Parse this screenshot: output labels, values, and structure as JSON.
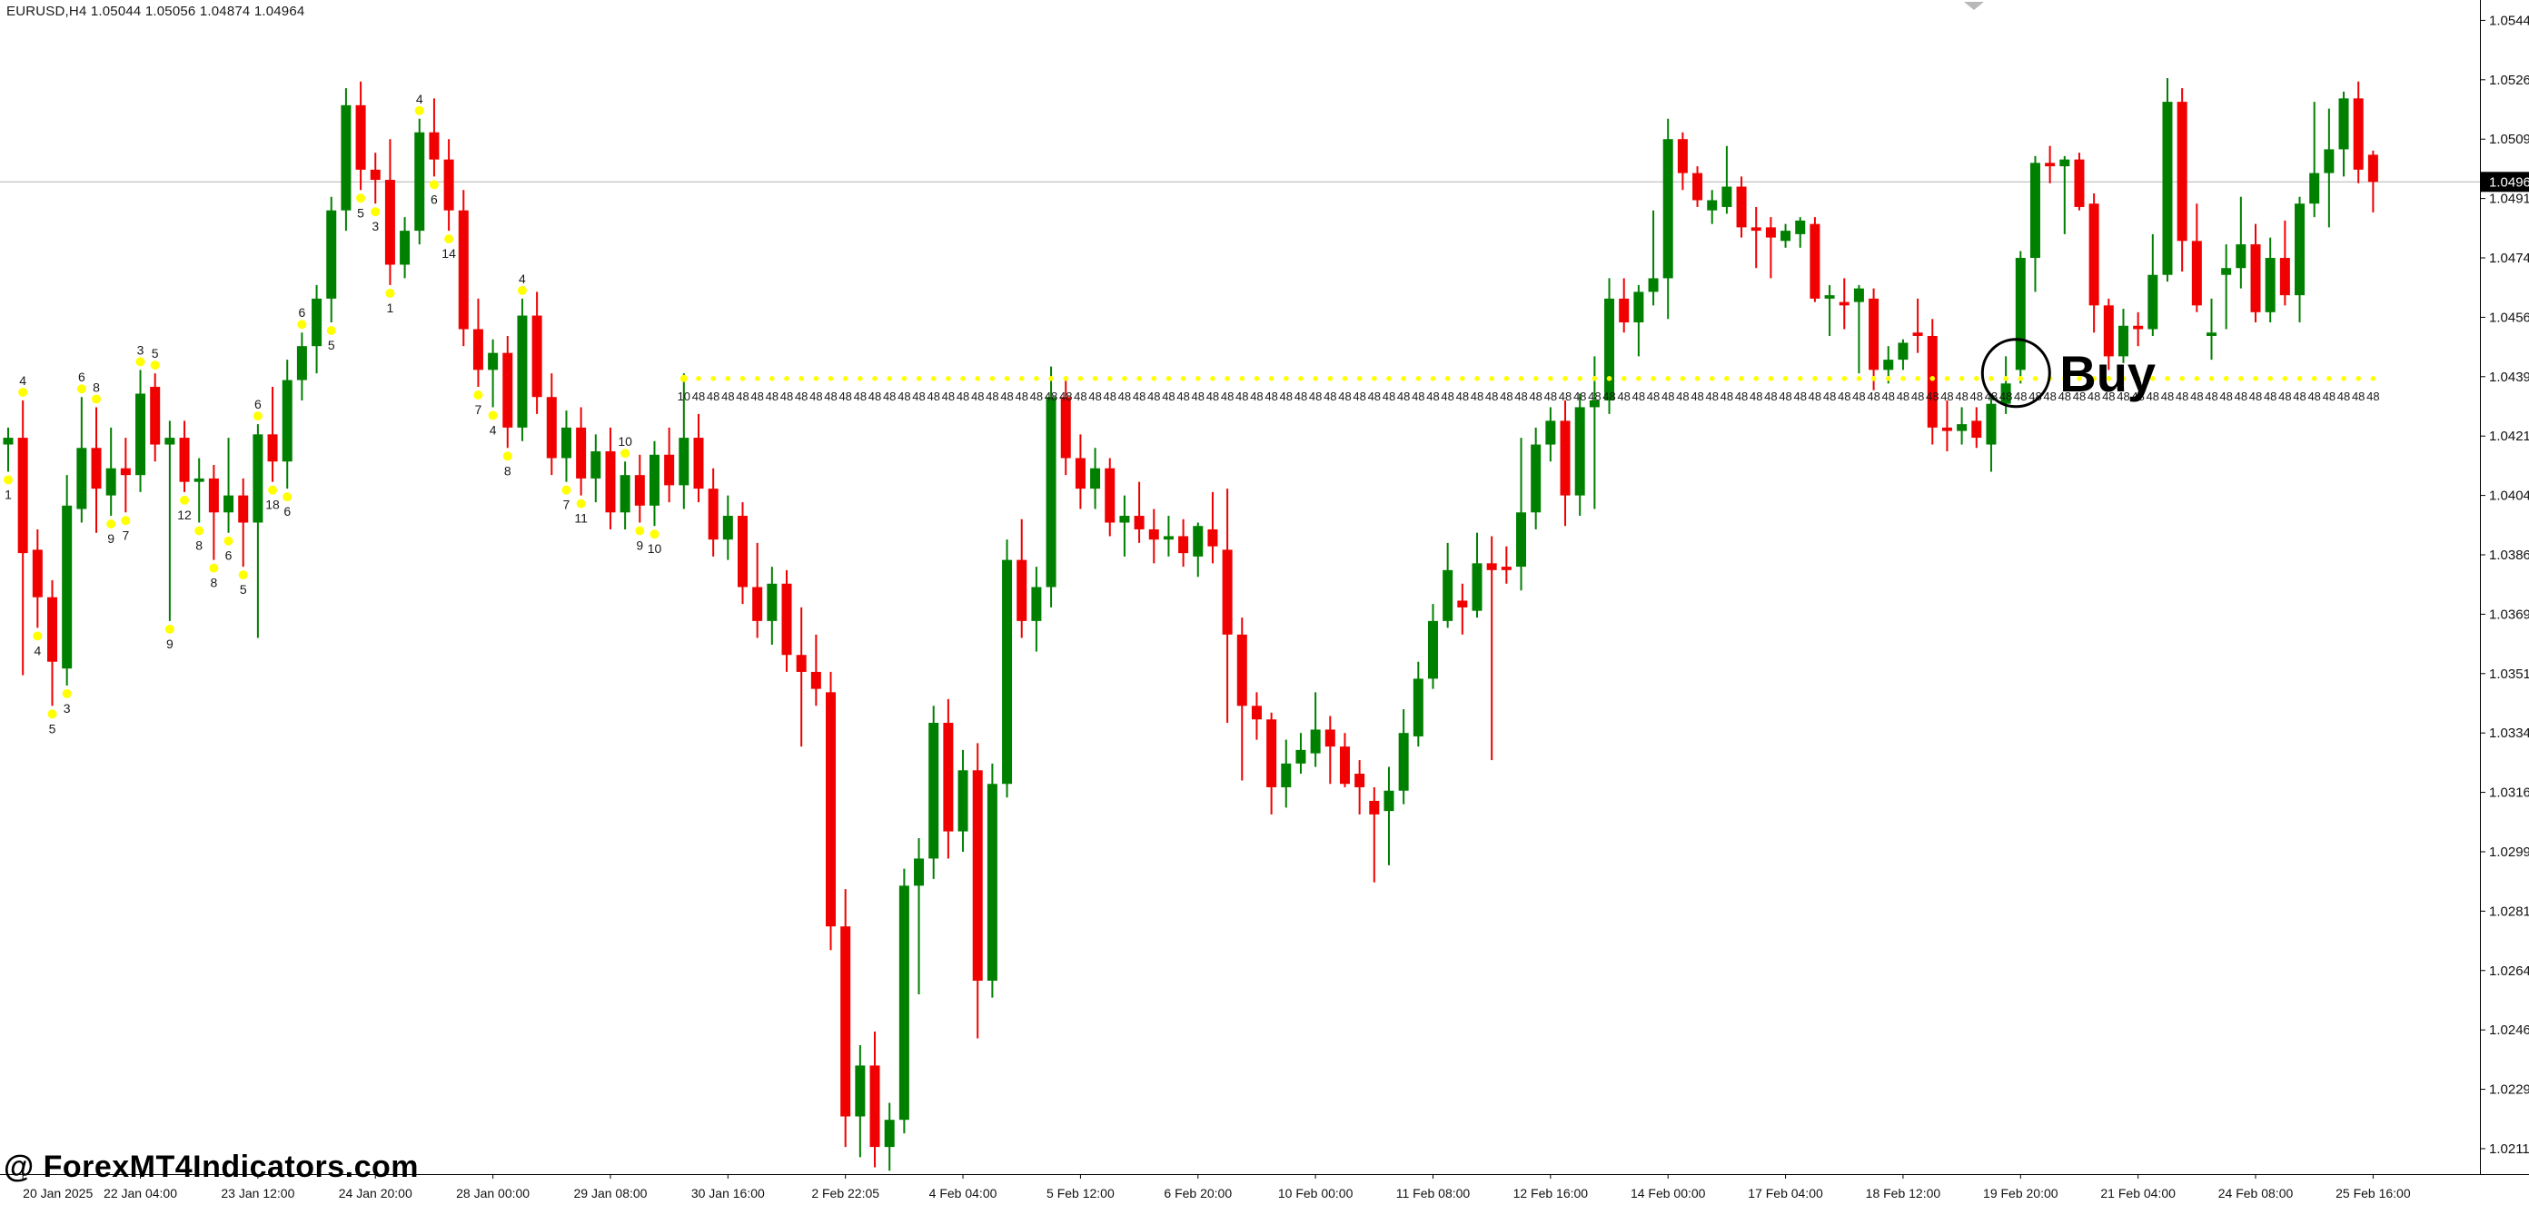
{
  "window": {
    "title": "EURUSD,H4  1.05044 1.05056 1.04874 1.04964",
    "watermark": "@ ForexMT4Indicators.com"
  },
  "colors": {
    "bull": "#008000",
    "bear": "#f00000",
    "background": "#ffffff",
    "axis_text": "#111111",
    "axis_line": "#000000",
    "current_price_line": "#b3b3b3",
    "current_price_box_bg": "#000000",
    "current_price_box_text": "#ffffff",
    "signal_dot": "#ffff00",
    "signal_text": "#1a1a1a",
    "marker_text": "#1a1a1a",
    "annotation": "#000000",
    "shift_icon": "#b8b8b8"
  },
  "price_axis": {
    "labels": [
      "1.05440",
      "1.05265",
      "1.05090",
      "1.04915",
      "1.04740",
      "1.04565",
      "1.04390",
      "1.04215",
      "1.04040",
      "1.03865",
      "1.03690",
      "1.03515",
      "1.03340",
      "1.03165",
      "1.02990",
      "1.02815",
      "1.02640",
      "1.02465",
      "1.02290",
      "1.02115"
    ],
    "current_price": "1.04964"
  },
  "time_axis": {
    "labels": [
      {
        "label": "20 Jan 2025",
        "bar": 1
      },
      {
        "label": "22 Jan 04:00",
        "bar": 9
      },
      {
        "label": "23 Jan 12:00",
        "bar": 17
      },
      {
        "label": "24 Jan 20:00",
        "bar": 25
      },
      {
        "label": "28 Jan 00:00",
        "bar": 33
      },
      {
        "label": "29 Jan 08:00",
        "bar": 41
      },
      {
        "label": "30 Jan 16:00",
        "bar": 49
      },
      {
        "label": "2 Feb 22:05",
        "bar": 57
      },
      {
        "label": "4 Feb 04:00",
        "bar": 65
      },
      {
        "label": "5 Feb 12:00",
        "bar": 73
      },
      {
        "label": "6 Feb 20:00",
        "bar": 81
      },
      {
        "label": "10 Feb 00:00",
        "bar": 89
      },
      {
        "label": "11 Feb 08:00",
        "bar": 97
      },
      {
        "label": "12 Feb 16:00",
        "bar": 105
      },
      {
        "label": "14 Feb 00:00",
        "bar": 113
      },
      {
        "label": "17 Feb 04:00",
        "bar": 121
      },
      {
        "label": "18 Feb 12:00",
        "bar": 129
      },
      {
        "label": "19 Feb 20:00",
        "bar": 137
      },
      {
        "label": "21 Feb 04:00",
        "bar": 145
      },
      {
        "label": "24 Feb 08:00",
        "bar": 153
      },
      {
        "label": "25 Feb 16:00",
        "bar": 161
      }
    ]
  },
  "chart_data": {
    "type": "candlestick",
    "symbol": "EURUSD",
    "timeframe": "H4",
    "title": "EURUSD,H4  1.05044 1.05056 1.04874 1.04964",
    "last_bar_ohlc": {
      "open": 1.05044,
      "high": 1.05056,
      "low": 1.04874,
      "close": 1.04964
    },
    "ylim": [
      1.0204,
      1.055
    ],
    "grid": false,
    "current_price": 1.04964,
    "signal_line": {
      "price": 1.0439,
      "start_bar": 46,
      "end_bar": 161,
      "first_label": "10",
      "repeat_label": "48"
    },
    "buy_annotation": {
      "text": "Buy",
      "bar": 137,
      "price": 1.0439
    },
    "candles": [
      [
        1.0419,
        1.0424,
        1.0411,
        1.0421
      ],
      [
        1.0421,
        1.0432,
        1.0351,
        1.0387
      ],
      [
        1.0388,
        1.0394,
        1.0365,
        1.0374
      ],
      [
        1.0374,
        1.0379,
        1.0342,
        1.0355
      ],
      [
        1.0353,
        1.041,
        1.0348,
        1.0401
      ],
      [
        1.04,
        1.0433,
        1.0396,
        1.0418
      ],
      [
        1.0418,
        1.043,
        1.0393,
        1.0406
      ],
      [
        1.0404,
        1.0424,
        1.0398,
        1.0412
      ],
      [
        1.0412,
        1.0421,
        1.0399,
        1.041
      ],
      [
        1.041,
        1.0441,
        1.0405,
        1.0434
      ],
      [
        1.0436,
        1.044,
        1.0414,
        1.0419
      ],
      [
        1.0419,
        1.0426,
        1.0367,
        1.0421
      ],
      [
        1.0421,
        1.0426,
        1.0405,
        1.0408
      ],
      [
        1.0408,
        1.0415,
        1.0396,
        1.0409
      ],
      [
        1.0409,
        1.0413,
        1.0385,
        1.0399
      ],
      [
        1.0399,
        1.0421,
        1.0393,
        1.0404
      ],
      [
        1.0404,
        1.0409,
        1.0383,
        1.0396
      ],
      [
        1.0396,
        1.0425,
        1.0362,
        1.0422
      ],
      [
        1.0422,
        1.0436,
        1.0408,
        1.0414
      ],
      [
        1.0414,
        1.0444,
        1.0406,
        1.0438
      ],
      [
        1.0438,
        1.0452,
        1.0432,
        1.0448
      ],
      [
        1.0448,
        1.0466,
        1.044,
        1.0462
      ],
      [
        1.0462,
        1.0492,
        1.0455,
        1.0488
      ],
      [
        1.0488,
        1.0524,
        1.0482,
        1.0519
      ],
      [
        1.0519,
        1.0526,
        1.0494,
        1.05
      ],
      [
        1.05,
        1.0505,
        1.049,
        1.0497
      ],
      [
        1.0497,
        1.0509,
        1.0466,
        1.0472
      ],
      [
        1.0472,
        1.0486,
        1.0468,
        1.0482
      ],
      [
        1.0482,
        1.0515,
        1.0478,
        1.0511
      ],
      [
        1.0511,
        1.0521,
        1.0498,
        1.0503
      ],
      [
        1.0503,
        1.0509,
        1.0482,
        1.0488
      ],
      [
        1.0488,
        1.0494,
        1.0448,
        1.0453
      ],
      [
        1.0453,
        1.0462,
        1.0436,
        1.0441
      ],
      [
        1.0441,
        1.045,
        1.043,
        1.0446
      ],
      [
        1.0446,
        1.0451,
        1.0418,
        1.0424
      ],
      [
        1.0424,
        1.0462,
        1.042,
        1.0457
      ],
      [
        1.0457,
        1.0464,
        1.0428,
        1.0433
      ],
      [
        1.0433,
        1.044,
        1.041,
        1.0415
      ],
      [
        1.0415,
        1.0429,
        1.0408,
        1.0424
      ],
      [
        1.0424,
        1.043,
        1.0404,
        1.0409
      ],
      [
        1.0409,
        1.0422,
        1.0402,
        1.0417
      ],
      [
        1.0417,
        1.0424,
        1.0394,
        1.0399
      ],
      [
        1.0399,
        1.0414,
        1.0394,
        1.041
      ],
      [
        1.041,
        1.0416,
        1.0396,
        1.0401
      ],
      [
        1.0401,
        1.042,
        1.0395,
        1.0416
      ],
      [
        1.0416,
        1.0424,
        1.0402,
        1.0407
      ],
      [
        1.0407,
        1.044,
        1.04,
        1.0421
      ],
      [
        1.0421,
        1.0428,
        1.0402,
        1.0406
      ],
      [
        1.0406,
        1.0412,
        1.0386,
        1.0391
      ],
      [
        1.0391,
        1.0404,
        1.0385,
        1.0398
      ],
      [
        1.0398,
        1.0402,
        1.0372,
        1.0377
      ],
      [
        1.0377,
        1.039,
        1.0362,
        1.0367
      ],
      [
        1.0367,
        1.0383,
        1.036,
        1.0378
      ],
      [
        1.0378,
        1.0382,
        1.0352,
        1.0357
      ],
      [
        1.0357,
        1.0371,
        1.033,
        1.0352
      ],
      [
        1.0352,
        1.0363,
        1.0342,
        1.0347
      ],
      [
        1.0346,
        1.0352,
        1.027,
        1.0277
      ],
      [
        1.0277,
        1.0288,
        1.0212,
        1.0221
      ],
      [
        1.0221,
        1.0242,
        1.0209,
        1.0236
      ],
      [
        1.0236,
        1.0246,
        1.0206,
        1.0212
      ],
      [
        1.0212,
        1.0225,
        1.0205,
        1.022
      ],
      [
        1.022,
        1.0294,
        1.0216,
        1.0289
      ],
      [
        1.0289,
        1.0303,
        1.0257,
        1.0297
      ],
      [
        1.0297,
        1.0342,
        1.0291,
        1.0337
      ],
      [
        1.0337,
        1.0344,
        1.0297,
        1.0305
      ],
      [
        1.0305,
        1.0329,
        1.0299,
        1.0323
      ],
      [
        1.0323,
        1.0331,
        1.0244,
        1.0261
      ],
      [
        1.0261,
        1.0325,
        1.0256,
        1.0319
      ],
      [
        1.0319,
        1.0391,
        1.0315,
        1.0385
      ],
      [
        1.0385,
        1.0397,
        1.0362,
        1.0367
      ],
      [
        1.0367,
        1.0383,
        1.0358,
        1.0377
      ],
      [
        1.0377,
        1.0442,
        1.0371,
        1.0433
      ],
      [
        1.0433,
        1.0438,
        1.041,
        1.0415
      ],
      [
        1.0415,
        1.0422,
        1.04,
        1.0406
      ],
      [
        1.0406,
        1.0418,
        1.04,
        1.0412
      ],
      [
        1.0412,
        1.0415,
        1.0392,
        1.0396
      ],
      [
        1.0396,
        1.0404,
        1.0386,
        1.0398
      ],
      [
        1.0398,
        1.0408,
        1.039,
        1.0394
      ],
      [
        1.0394,
        1.04,
        1.0384,
        1.0391
      ],
      [
        1.0391,
        1.0398,
        1.0386,
        1.0392
      ],
      [
        1.0392,
        1.0397,
        1.0383,
        1.0387
      ],
      [
        1.0386,
        1.0396,
        1.038,
        1.0395
      ],
      [
        1.0394,
        1.0405,
        1.0384,
        1.0389
      ],
      [
        1.0388,
        1.0406,
        1.0337,
        1.0363
      ],
      [
        1.0363,
        1.0368,
        1.032,
        1.0342
      ],
      [
        1.0342,
        1.0346,
        1.0332,
        1.0338
      ],
      [
        1.0338,
        1.034,
        1.031,
        1.0318
      ],
      [
        1.0318,
        1.0332,
        1.0312,
        1.0325
      ],
      [
        1.0325,
        1.0334,
        1.0322,
        1.0329
      ],
      [
        1.0328,
        1.0346,
        1.0324,
        1.0335
      ],
      [
        1.0335,
        1.0339,
        1.0319,
        1.033
      ],
      [
        1.033,
        1.0334,
        1.0318,
        1.0319
      ],
      [
        1.0322,
        1.0326,
        1.031,
        1.0318
      ],
      [
        1.0314,
        1.0318,
        1.029,
        1.031
      ],
      [
        1.0311,
        1.0324,
        1.0295,
        1.0317
      ],
      [
        1.0317,
        1.0341,
        1.0313,
        1.0334
      ],
      [
        1.0333,
        1.0355,
        1.033,
        1.035
      ],
      [
        1.035,
        1.0372,
        1.0347,
        1.0367
      ],
      [
        1.0367,
        1.039,
        1.0365,
        1.0382
      ],
      [
        1.0373,
        1.0378,
        1.0363,
        1.0371
      ],
      [
        1.037,
        1.0393,
        1.0368,
        1.0384
      ],
      [
        1.0384,
        1.0392,
        1.0326,
        1.0382
      ],
      [
        1.0383,
        1.0389,
        1.0378,
        1.0382
      ],
      [
        1.0383,
        1.0421,
        1.0376,
        1.0399
      ],
      [
        1.0399,
        1.0424,
        1.0394,
        1.0419
      ],
      [
        1.0419,
        1.043,
        1.0414,
        1.0426
      ],
      [
        1.0426,
        1.0432,
        1.0395,
        1.0404
      ],
      [
        1.0404,
        1.0434,
        1.0398,
        1.043
      ],
      [
        1.043,
        1.0445,
        1.04,
        1.0432
      ],
      [
        1.0432,
        1.0468,
        1.0428,
        1.0462
      ],
      [
        1.0462,
        1.0468,
        1.0452,
        1.0455
      ],
      [
        1.0455,
        1.0466,
        1.0445,
        1.0464
      ],
      [
        1.0464,
        1.0488,
        1.046,
        1.0468
      ],
      [
        1.0468,
        1.0515,
        1.0456,
        1.0509
      ],
      [
        1.0509,
        1.0511,
        1.0494,
        1.0499
      ],
      [
        1.0499,
        1.0501,
        1.0489,
        1.0491
      ],
      [
        1.0488,
        1.0494,
        1.0484,
        1.0491
      ],
      [
        1.0489,
        1.0507,
        1.0487,
        1.0495
      ],
      [
        1.0495,
        1.0498,
        1.048,
        1.0483
      ],
      [
        1.0483,
        1.0489,
        1.0471,
        1.0482
      ],
      [
        1.0483,
        1.0486,
        1.0468,
        1.048
      ],
      [
        1.0479,
        1.0484,
        1.0477,
        1.0482
      ],
      [
        1.0481,
        1.0486,
        1.0477,
        1.0485
      ],
      [
        1.0484,
        1.0486,
        1.0461,
        1.0462
      ],
      [
        1.0462,
        1.0466,
        1.0451,
        1.0463
      ],
      [
        1.0461,
        1.0468,
        1.0453,
        1.046
      ],
      [
        1.0461,
        1.0466,
        1.044,
        1.0465
      ],
      [
        1.0462,
        1.0465,
        1.0435,
        1.0441
      ],
      [
        1.0441,
        1.0448,
        1.0437,
        1.0444
      ],
      [
        1.0444,
        1.045,
        1.0441,
        1.0449
      ],
      [
        1.0452,
        1.0462,
        1.0446,
        1.0451
      ],
      [
        1.0451,
        1.0456,
        1.0419,
        1.0424
      ],
      [
        1.0424,
        1.0432,
        1.0417,
        1.0423
      ],
      [
        1.0423,
        1.043,
        1.0419,
        1.0425
      ],
      [
        1.0426,
        1.043,
        1.0418,
        1.0421
      ],
      [
        1.0419,
        1.0434,
        1.0411,
        1.0431
      ],
      [
        1.0431,
        1.0445,
        1.0428,
        1.0437
      ],
      [
        1.0441,
        1.0476,
        1.0437,
        1.0474
      ],
      [
        1.0474,
        1.0504,
        1.0464,
        1.0502
      ],
      [
        1.0502,
        1.0507,
        1.0496,
        1.0501
      ],
      [
        1.0501,
        1.0504,
        1.0481,
        1.0503
      ],
      [
        1.0503,
        1.0505,
        1.0488,
        1.0489
      ],
      [
        1.049,
        1.0493,
        1.0452,
        1.046
      ],
      [
        1.046,
        1.0462,
        1.0441,
        1.0445
      ],
      [
        1.0445,
        1.0459,
        1.0443,
        1.0454
      ],
      [
        1.0454,
        1.0458,
        1.0448,
        1.0453
      ],
      [
        1.0453,
        1.0481,
        1.0451,
        1.0469
      ],
      [
        1.0469,
        1.0527,
        1.0467,
        1.052
      ],
      [
        1.052,
        1.0524,
        1.047,
        1.0479
      ],
      [
        1.0479,
        1.049,
        1.0458,
        1.046
      ],
      [
        1.0451,
        1.0462,
        1.0444,
        1.0452
      ],
      [
        1.0469,
        1.0478,
        1.0453,
        1.0471
      ],
      [
        1.0471,
        1.0492,
        1.0465,
        1.0478
      ],
      [
        1.0478,
        1.0484,
        1.0455,
        1.0458
      ],
      [
        1.0458,
        1.048,
        1.0455,
        1.0474
      ],
      [
        1.0474,
        1.0485,
        1.046,
        1.0463
      ],
      [
        1.0463,
        1.0492,
        1.0455,
        1.049
      ],
      [
        1.049,
        1.052,
        1.0486,
        1.0499
      ],
      [
        1.0499,
        1.0518,
        1.0483,
        1.0506
      ],
      [
        1.0506,
        1.0523,
        1.0498,
        1.0521
      ],
      [
        1.0521,
        1.0526,
        1.0496,
        1.05
      ],
      [
        1.05044,
        1.05056,
        1.04874,
        1.04964
      ]
    ],
    "markers": [
      {
        "bar": 0,
        "label": "1",
        "side": "below"
      },
      {
        "bar": 1,
        "label": "4",
        "side": "above"
      },
      {
        "bar": 2,
        "label": "4",
        "side": "below"
      },
      {
        "bar": 3,
        "label": "5",
        "side": "below"
      },
      {
        "bar": 4,
        "label": "3",
        "side": "below"
      },
      {
        "bar": 5,
        "label": "6",
        "side": "above"
      },
      {
        "bar": 6,
        "label": "8",
        "side": "above"
      },
      {
        "bar": 7,
        "label": "9",
        "side": "below"
      },
      {
        "bar": 8,
        "label": "7",
        "side": "below"
      },
      {
        "bar": 9,
        "label": "3",
        "side": "above"
      },
      {
        "bar": 10,
        "label": "5",
        "side": "above"
      },
      {
        "bar": 11,
        "label": "9",
        "side": "below"
      },
      {
        "bar": 12,
        "label": "12",
        "side": "below"
      },
      {
        "bar": 13,
        "label": "8",
        "side": "below"
      },
      {
        "bar": 14,
        "label": "8",
        "side": "below"
      },
      {
        "bar": 15,
        "label": "6",
        "side": "below"
      },
      {
        "bar": 16,
        "label": "5",
        "side": "below"
      },
      {
        "bar": 17,
        "label": "6",
        "side": "above"
      },
      {
        "bar": 18,
        "label": "18",
        "side": "below"
      },
      {
        "bar": 19,
        "label": "6",
        "side": "below"
      },
      {
        "bar": 20,
        "label": "6",
        "side": "above"
      },
      {
        "bar": 22,
        "label": "5",
        "side": "below"
      },
      {
        "bar": 24,
        "label": "5",
        "side": "below"
      },
      {
        "bar": 25,
        "label": "3",
        "side": "below"
      },
      {
        "bar": 26,
        "label": "1",
        "side": "below"
      },
      {
        "bar": 28,
        "label": "4",
        "side": "above"
      },
      {
        "bar": 29,
        "label": "6",
        "side": "below"
      },
      {
        "bar": 30,
        "label": "14",
        "side": "below"
      },
      {
        "bar": 32,
        "label": "7",
        "side": "below"
      },
      {
        "bar": 33,
        "label": "4",
        "side": "below"
      },
      {
        "bar": 34,
        "label": "8",
        "side": "below"
      },
      {
        "bar": 35,
        "label": "4",
        "side": "above"
      },
      {
        "bar": 38,
        "label": "7",
        "side": "below"
      },
      {
        "bar": 39,
        "label": "11",
        "side": "below"
      },
      {
        "bar": 42,
        "label": "10",
        "side": "above"
      },
      {
        "bar": 43,
        "label": "9",
        "side": "below"
      },
      {
        "bar": 44,
        "label": "10",
        "side": "below"
      }
    ]
  }
}
